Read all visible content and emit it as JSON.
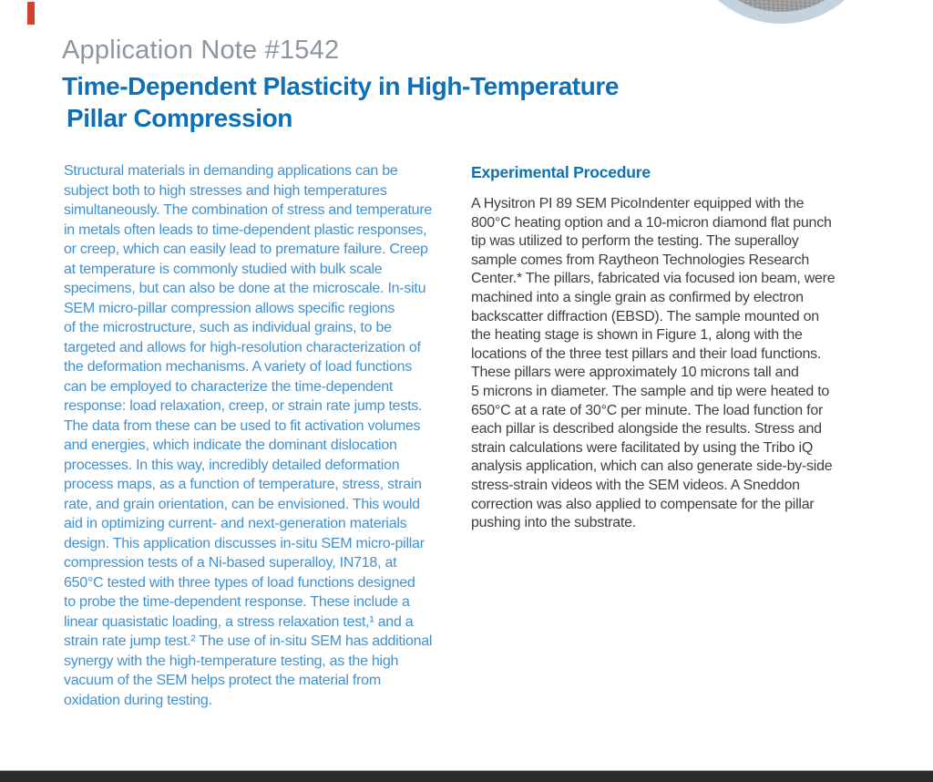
{
  "header": {
    "eyebrow": "Application Note #1542",
    "title_line1": "Time-Dependent Plasticity in High-Temperature",
    "title_line2": "Pillar Compression"
  },
  "intro": {
    "text": "Structural materials in demanding applications can be\nsubject both to high stresses and high temperatures\nsimultaneously. The combination of stress and temperature\nin metals often leads to time-dependent plastic responses,\nor creep, which can easily lead to premature failure. Creep\nat temperature is commonly studied with bulk scale\nspecimens, but can also be done at the microscale. In-situ\nSEM micro-pillar compression allows specific regions\nof the microstructure, such as individual grains, to be\ntargeted and allows for high-resolution characterization of\nthe deformation mechanisms. A variety of load functions\ncan be employed to characterize the time-dependent\nresponse: load relaxation, creep, or strain rate jump tests.\nThe data from these can be used to fit activation volumes\nand energies, which indicate the dominant dislocation\nprocesses. In this way, incredibly detailed deformation\nprocess maps, as a function of temperature, stress, strain\nrate, and grain orientation, can be envisioned. This would\naid in optimizing current- and next-generation materials\ndesign. This application discusses in-situ SEM micro-pillar\ncompression tests of a Ni-based superalloy, IN718, at\n650°C tested with three types of load functions designed\nto probe the time-dependent response. These include a\nlinear quasistatic loading, a stress relaxation test,¹ and a\nstrain rate jump test.² The use of in-situ SEM has additional\nsynergy with the high-temperature testing, as the high\nvacuum of the SEM helps protect the material from\noxidation during testing."
  },
  "experimental": {
    "heading": "Experimental Procedure",
    "text": "A Hysitron PI 89 SEM PicoIndenter equipped with the\n800°C heating option and a 10-micron diamond flat punch\ntip was utilized to perform the testing. The superalloy\nsample comes from Raytheon Technologies Research\nCenter.* The pillars, fabricated via focused ion beam, were\nmachined into a single grain as confirmed by electron\nbackscatter diffraction (EBSD). The sample mounted on\nthe heating stage is shown in Figure 1, along with the\nlocations of the three test pillars and their load functions.\nThese pillars were approximately 10 microns tall and\n5 microns in diameter. The sample and tip were heated to\n650°C at a rate of 30°C per minute. The load function for\neach pillar is described alongside the results. Stress and\nstrain calculations were facilitated by using the Tribo iQ\nanalysis application, which can also generate side-by-side\nstress-strain videos with the SEM videos. A Sneddon\ncorrection was also applied to compensate for the pillar\npushing into the substrate."
  },
  "colors": {
    "title_blue": "#0e71b8",
    "intro_text_blue": "#4191d0",
    "eyebrow_gray": "#8e969d",
    "body_text_dark": "#3f3f3f",
    "footer_bar_dark": "#2b2b2b",
    "footer_rule_gray": "#9e9e9e",
    "accent_red": "#d2402f",
    "circle_ring_blue_gray": "#c3d2dd",
    "sem_texture_gray": "#a2a2a2"
  }
}
